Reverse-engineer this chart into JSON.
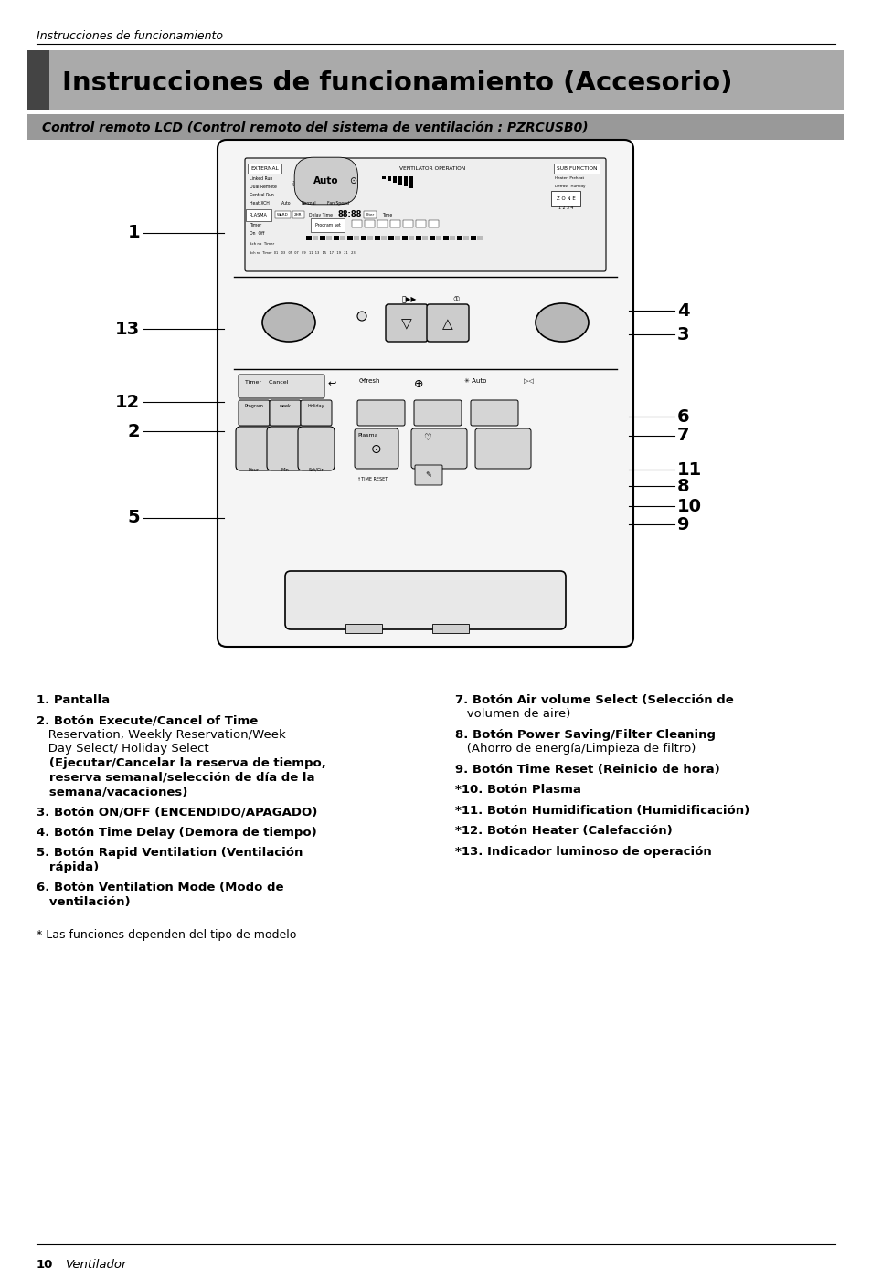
{
  "header_italic": "Instrucciones de funcionamiento",
  "main_title": "Instrucciones de funcionamiento (Accesorio)",
  "subtitle": "Control remoto LCD (Control remoto del sistema de ventilación : PZRCUSB0)",
  "footer_bold": "10",
  "footer_italic": "Ventilador",
  "bg_color": "#ffffff",
  "title_bar_gray": "#aaaaaa",
  "title_bar_dark": "#555555",
  "subtitle_bar_gray": "#888888",
  "footnote": "* Las funciones dependen del tipo de modelo"
}
